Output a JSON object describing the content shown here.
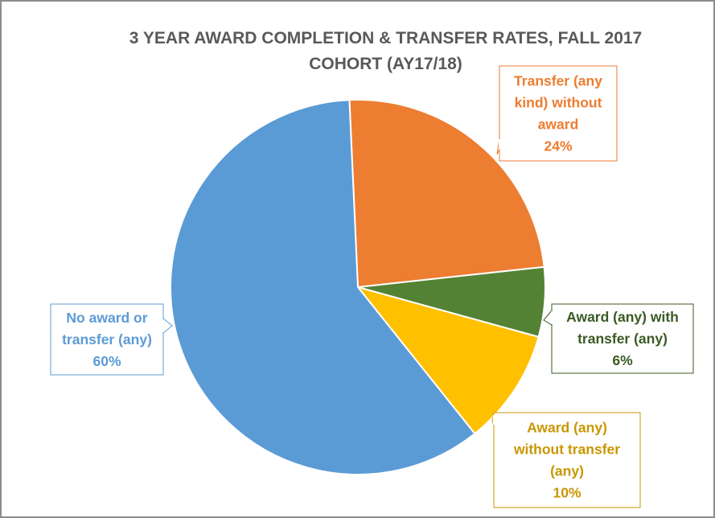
{
  "chart_data": {
    "type": "pie",
    "title_lines": [
      "3 YEAR AWARD COMPLETION & TRANSFER RATES, FALL 2017",
      "COHORT (AY17/18)"
    ],
    "slices": [
      {
        "label_lines": [
          "Transfer (any",
          "kind) without",
          "award"
        ],
        "value": 24,
        "pct": "24%",
        "color": "#ed7d31",
        "label_color": "#ed7d31"
      },
      {
        "label_lines": [
          "Award (any) with",
          "transfer (any)"
        ],
        "value": 6,
        "pct": "6%",
        "color": "#548235",
        "label_color": "#3a5a23"
      },
      {
        "label_lines": [
          "Award (any)",
          "without transfer",
          "(any)"
        ],
        "value": 10,
        "pct": "10%",
        "color": "#ffc000",
        "label_color": "#c99700"
      },
      {
        "label_lines": [
          "No award or",
          "transfer (any)"
        ],
        "value": 60,
        "pct": "60%",
        "color": "#5b9bd5",
        "label_color": "#5b9bd5"
      }
    ],
    "legend": "none"
  }
}
